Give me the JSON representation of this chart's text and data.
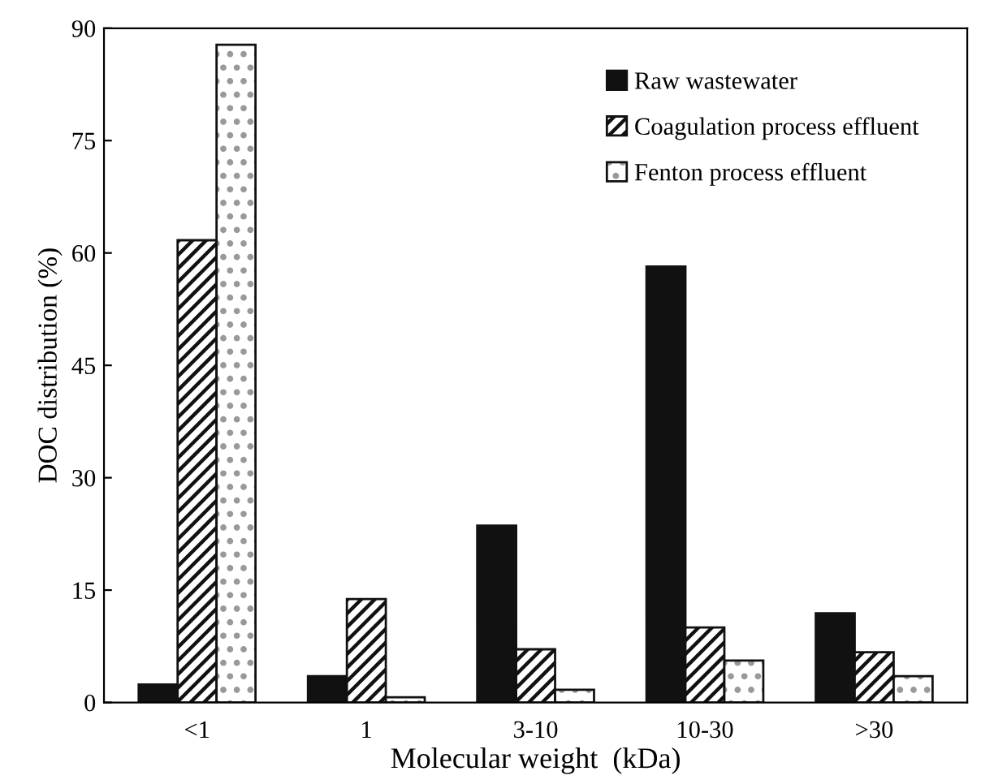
{
  "chart_data": {
    "type": "bar",
    "xlabel": "Molecular weight  (kDa)",
    "ylabel": "DOC distribution (%)",
    "categories": [
      "<1",
      "1",
      "3-10",
      "10-30",
      ">30"
    ],
    "series": [
      {
        "name": "Raw wastewater",
        "color": "#111111",
        "values": [
          2.4,
          3.5,
          23.6,
          58.2,
          11.9
        ]
      },
      {
        "name": "Coagulation process effluent",
        "color": "#111111",
        "values": [
          61.7,
          13.8,
          7.1,
          10.0,
          6.7
        ]
      },
      {
        "name": "Fenton process effluent",
        "color": "#ffffff",
        "values": [
          87.8,
          0.7,
          1.7,
          5.6,
          3.5
        ]
      }
    ],
    "ylim": [
      0,
      90
    ],
    "yticks": [
      0,
      15,
      30,
      45,
      60,
      75,
      90
    ],
    "grid": false,
    "legend": "top right"
  }
}
